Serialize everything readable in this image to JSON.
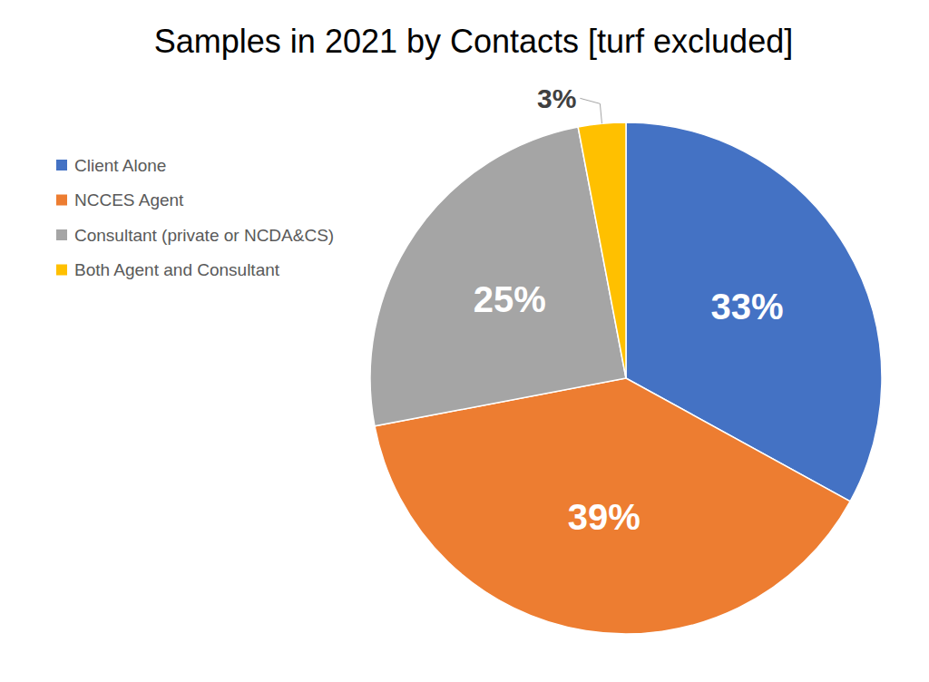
{
  "chart_data": {
    "type": "pie",
    "title": "Samples in 2021 by Contacts [turf excluded]",
    "categories": [
      "Client Alone",
      "NCCES Agent",
      "Consultant (private or NCDA&CS)",
      "Both Agent and Consultant"
    ],
    "values": [
      33,
      39,
      25,
      3
    ],
    "value_labels": [
      "33%",
      "39%",
      "25%",
      "3%"
    ],
    "colors": [
      "#4472c4",
      "#ed7d31",
      "#a5a5a5",
      "#ffc000"
    ],
    "legend": "upper left",
    "data_labels": true
  }
}
